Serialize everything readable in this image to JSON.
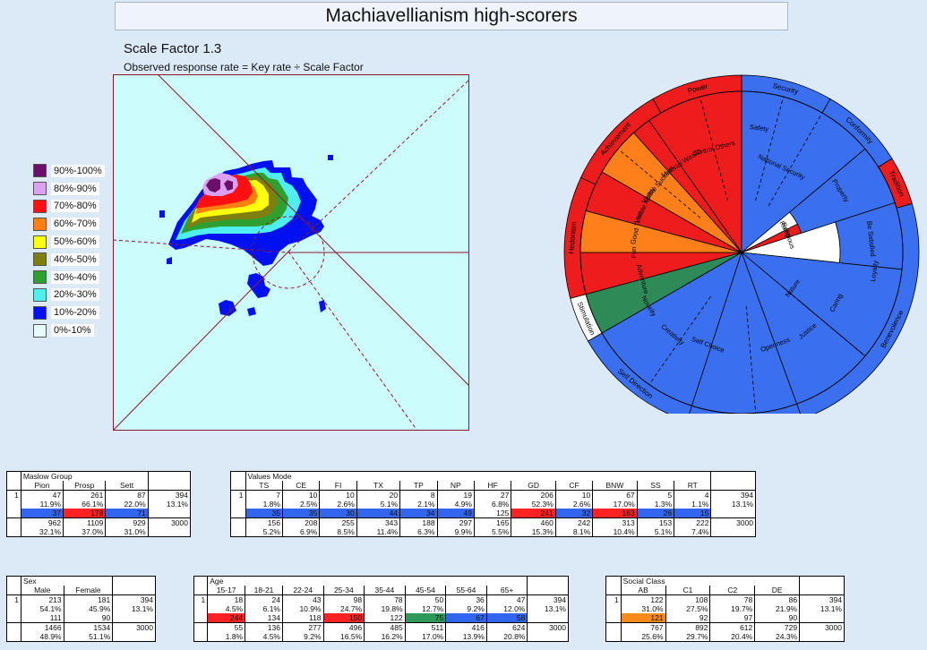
{
  "header": {
    "title": "Machiavellianism high-scorers",
    "scale_factor": "Scale Factor 1.3",
    "formula": "Observed response rate = Key rate ÷ Scale Factor"
  },
  "legend": [
    {
      "label": "90%-100%",
      "color": "#6b0f6b"
    },
    {
      "label": "80%-90%",
      "color": "#dca0f0"
    },
    {
      "label": "70%-80%",
      "color": "#ff1010"
    },
    {
      "label": "60%-70%",
      "color": "#ff7f10"
    },
    {
      "label": "50%-60%",
      "color": "#ffff10"
    },
    {
      "label": "40%-50%",
      "color": "#7f7f10"
    },
    {
      "label": "30%-40%",
      "color": "#2f9f2f"
    },
    {
      "label": "20%-30%",
      "color": "#4fefef"
    },
    {
      "label": "10%-20%",
      "color": "#0010ef"
    },
    {
      "label": "0%-10%",
      "color": "#e6fcfc"
    }
  ],
  "wheel": {
    "outer": [
      "Security",
      "Conformity",
      "Tradition",
      "Benevolence",
      "Universalism",
      "Self Direction",
      "Stimulation",
      "Hedonism",
      "Achievement",
      "Power"
    ],
    "middle": [
      "Safety",
      "National Security",
      "Property",
      "Rules",
      "Religious",
      "Be Satisfied",
      "Loyalty",
      "Caring",
      "Justice",
      "Openness",
      "Nature",
      "Self Choice",
      "Creativity",
      "Novelty",
      "Adventure",
      "Fun",
      "Good Time",
      "Visible Ability",
      "Visible Success",
      "Material Wealth",
      "Control Others"
    ]
  },
  "tables": {
    "maslow": {
      "title": "Maslow Group",
      "cols": [
        "Pion",
        "Prosp",
        "Sett"
      ],
      "rows": [
        [
          "1",
          "47",
          "261",
          "87",
          "394"
        ],
        [
          "",
          "11.9%",
          "66.1%",
          "22.0%",
          "13.1%"
        ],
        [
          "",
          "37",
          "178",
          "71",
          ""
        ],
        [
          "",
          "962",
          "1109",
          "929",
          "3000"
        ],
        [
          "",
          "32.1%",
          "37.0%",
          "31.0%",
          ""
        ]
      ]
    },
    "values": {
      "title": "Values Mode",
      "cols": [
        "TS",
        "CE",
        "FI",
        "TX",
        "TP",
        "NP",
        "HF",
        "GD",
        "CF",
        "BNW",
        "SS",
        "RT"
      ],
      "rows": [
        [
          "1",
          "7",
          "10",
          "10",
          "20",
          "8",
          "19",
          "27",
          "206",
          "10",
          "67",
          "5",
          "4",
          "394"
        ],
        [
          "",
          "1.8%",
          "2.5%",
          "2.6%",
          "5.1%",
          "2.1%",
          "4.9%",
          "6.8%",
          "52.3%",
          "2.6%",
          "17.0%",
          "1.3%",
          "1.1%",
          "13.1%"
        ],
        [
          "",
          "35",
          "35",
          "30",
          "44",
          "34",
          "49",
          "125",
          "241",
          "32",
          "163",
          "26",
          "15",
          ""
        ],
        [
          "",
          "156",
          "208",
          "255",
          "343",
          "188",
          "297",
          "165",
          "460",
          "242",
          "313",
          "153",
          "222",
          "3000"
        ],
        [
          "",
          "5.2%",
          "6.9%",
          "8.5%",
          "11.4%",
          "6.3%",
          "9.9%",
          "5.5%",
          "15.3%",
          "8.1%",
          "10.4%",
          "5.1%",
          "7.4%",
          ""
        ]
      ]
    },
    "sex": {
      "title": "Sex",
      "cols": [
        "Male",
        "Female"
      ],
      "rows": [
        [
          "1",
          "213",
          "181",
          "394"
        ],
        [
          "",
          "54.1%",
          "45.9%",
          "13.1%"
        ],
        [
          "",
          "111",
          "90",
          ""
        ],
        [
          "",
          "1466",
          "1534",
          "3000"
        ],
        [
          "",
          "48.9%",
          "51.1%",
          ""
        ]
      ]
    },
    "age": {
      "title": "Age",
      "cols": [
        "15-17",
        "18-21",
        "22-24",
        "25-34",
        "35-44",
        "45-54",
        "55-64",
        "65+"
      ],
      "rows": [
        [
          "1",
          "18",
          "24",
          "43",
          "98",
          "78",
          "50",
          "36",
          "47",
          "394"
        ],
        [
          "",
          "4.5%",
          "6.1%",
          "10.9%",
          "24.7%",
          "19.8%",
          "12.7%",
          "9.2%",
          "12.0%",
          "13.1%"
        ],
        [
          "",
          "244",
          "134",
          "118",
          "150",
          "122",
          "75",
          "67",
          "58",
          ""
        ],
        [
          "",
          "55",
          "136",
          "277",
          "496",
          "485",
          "511",
          "416",
          "624",
          "3000"
        ],
        [
          "",
          "1.8%",
          "4.5%",
          "9.2%",
          "16.5%",
          "16.2%",
          "17.0%",
          "13.9%",
          "20.8%",
          ""
        ]
      ]
    },
    "social": {
      "title": "Social Class",
      "cols": [
        "AB",
        "C1",
        "C2",
        "DE"
      ],
      "rows": [
        [
          "1",
          "122",
          "108",
          "78",
          "86",
          "394"
        ],
        [
          "",
          "31.0%",
          "27.5%",
          "19.7%",
          "21.9%",
          "13.1%"
        ],
        [
          "",
          "121",
          "92",
          "97",
          "90",
          ""
        ],
        [
          "",
          "767",
          "892",
          "612",
          "729",
          "3000"
        ],
        [
          "",
          "25.6%",
          "29.7%",
          "20.4%",
          "24.3%",
          ""
        ]
      ]
    }
  }
}
